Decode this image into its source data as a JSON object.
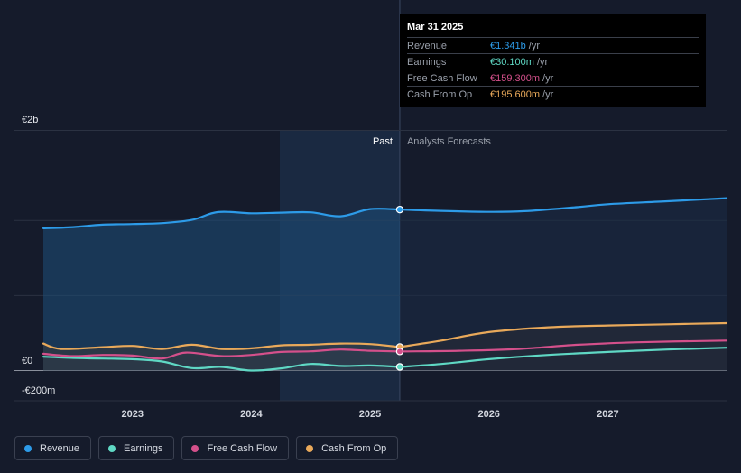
{
  "colors": {
    "revenue": "#2d9be8",
    "earnings": "#5fd8c4",
    "fcf": "#d4508b",
    "cfo": "#e9a95a",
    "grid": "#2b3242",
    "past_shade": "#1b2c45"
  },
  "tooltip": {
    "date": "Mar 31 2025",
    "rows": [
      {
        "name": "Revenue",
        "value": "€1.341b",
        "unit": "/yr",
        "color": "#2d9be8"
      },
      {
        "name": "Earnings",
        "value": "€30.100m",
        "unit": "/yr",
        "color": "#5fd8c4"
      },
      {
        "name": "Free Cash Flow",
        "value": "€159.300m",
        "unit": "/yr",
        "color": "#d4508b"
      },
      {
        "name": "Cash From Op",
        "value": "€195.600m",
        "unit": "/yr",
        "color": "#e9a95a"
      }
    ]
  },
  "legend": [
    {
      "label": "Revenue",
      "color": "#2d9be8"
    },
    {
      "label": "Earnings",
      "color": "#5fd8c4"
    },
    {
      "label": "Free Cash Flow",
      "color": "#d4508b"
    },
    {
      "label": "Cash From Op",
      "color": "#e9a95a"
    }
  ],
  "chart_data": {
    "type": "line",
    "title": "",
    "xlabel": "",
    "ylabel": "",
    "xlim": [
      2022.25,
      2028.0
    ],
    "ylim": [
      -200,
      2000
    ],
    "y_ticks": [
      {
        "value": 2000,
        "label": "€2b"
      },
      {
        "value": 0,
        "label": "€0"
      },
      {
        "value": -200,
        "label": "-€200m"
      }
    ],
    "x_ticks": [
      {
        "value": 2023,
        "label": "2023"
      },
      {
        "value": 2024,
        "label": "2024"
      },
      {
        "value": 2025,
        "label": "2025"
      },
      {
        "value": 2026,
        "label": "2026"
      },
      {
        "value": 2027,
        "label": "2027"
      }
    ],
    "past_label": "Past",
    "forecast_label": "Analysts Forecasts",
    "highlight_start": 2024.24,
    "split_x": 2025.25,
    "series": [
      {
        "name": "Revenue",
        "key": "revenue",
        "points": [
          [
            2022.25,
            1185
          ],
          [
            2022.5,
            1195
          ],
          [
            2022.75,
            1215
          ],
          [
            2023.0,
            1220
          ],
          [
            2023.25,
            1228
          ],
          [
            2023.5,
            1255
          ],
          [
            2023.72,
            1320
          ],
          [
            2024.0,
            1310
          ],
          [
            2024.25,
            1315
          ],
          [
            2024.5,
            1318
          ],
          [
            2024.75,
            1285
          ],
          [
            2025.0,
            1345
          ],
          [
            2025.25,
            1341
          ]
        ],
        "forecast": [
          [
            2025.25,
            1341
          ],
          [
            2025.6,
            1330
          ],
          [
            2026.0,
            1322
          ],
          [
            2026.3,
            1328
          ],
          [
            2026.75,
            1362
          ],
          [
            2027.0,
            1385
          ],
          [
            2027.5,
            1410
          ],
          [
            2028.0,
            1435
          ]
        ]
      },
      {
        "name": "Earnings",
        "key": "earnings",
        "points": [
          [
            2022.25,
            115
          ],
          [
            2022.5,
            105
          ],
          [
            2022.75,
            100
          ],
          [
            2023.0,
            95
          ],
          [
            2023.25,
            75
          ],
          [
            2023.5,
            20
          ],
          [
            2023.75,
            30
          ],
          [
            2024.0,
            0
          ],
          [
            2024.25,
            18
          ],
          [
            2024.5,
            55
          ],
          [
            2024.75,
            38
          ],
          [
            2025.0,
            42
          ],
          [
            2025.25,
            30
          ]
        ],
        "forecast": [
          [
            2025.25,
            30
          ],
          [
            2025.6,
            55
          ],
          [
            2026.0,
            95
          ],
          [
            2026.5,
            130
          ],
          [
            2027.0,
            155
          ],
          [
            2027.5,
            175
          ],
          [
            2028.0,
            190
          ]
        ]
      },
      {
        "name": "Free Cash Flow",
        "key": "fcf",
        "points": [
          [
            2022.25,
            140
          ],
          [
            2022.5,
            120
          ],
          [
            2022.75,
            130
          ],
          [
            2023.0,
            125
          ],
          [
            2023.25,
            100
          ],
          [
            2023.45,
            150
          ],
          [
            2023.75,
            120
          ],
          [
            2024.0,
            130
          ],
          [
            2024.25,
            155
          ],
          [
            2024.5,
            160
          ],
          [
            2024.75,
            175
          ],
          [
            2025.0,
            165
          ],
          [
            2025.25,
            159
          ]
        ],
        "forecast": [
          [
            2025.25,
            159
          ],
          [
            2025.75,
            165
          ],
          [
            2026.25,
            180
          ],
          [
            2026.75,
            215
          ],
          [
            2027.25,
            235
          ],
          [
            2028.0,
            250
          ]
        ]
      },
      {
        "name": "Cash From Op",
        "key": "cfo",
        "points": [
          [
            2022.25,
            225
          ],
          [
            2022.4,
            180
          ],
          [
            2022.75,
            195
          ],
          [
            2023.0,
            205
          ],
          [
            2023.25,
            180
          ],
          [
            2023.5,
            215
          ],
          [
            2023.75,
            180
          ],
          [
            2024.0,
            185
          ],
          [
            2024.25,
            210
          ],
          [
            2024.5,
            215
          ],
          [
            2024.75,
            225
          ],
          [
            2025.0,
            220
          ],
          [
            2025.25,
            196
          ]
        ],
        "forecast": [
          [
            2025.25,
            196
          ],
          [
            2025.6,
            250
          ],
          [
            2026.0,
            320
          ],
          [
            2026.5,
            360
          ],
          [
            2027.0,
            375
          ],
          [
            2027.5,
            385
          ],
          [
            2028.0,
            395
          ]
        ]
      }
    ],
    "markers": [
      {
        "key": "revenue",
        "x": 2025.25,
        "y": 1341
      },
      {
        "key": "cfo",
        "x": 2025.25,
        "y": 196
      },
      {
        "key": "fcf",
        "x": 2025.25,
        "y": 159
      },
      {
        "key": "earnings",
        "x": 2025.25,
        "y": 30
      }
    ]
  }
}
